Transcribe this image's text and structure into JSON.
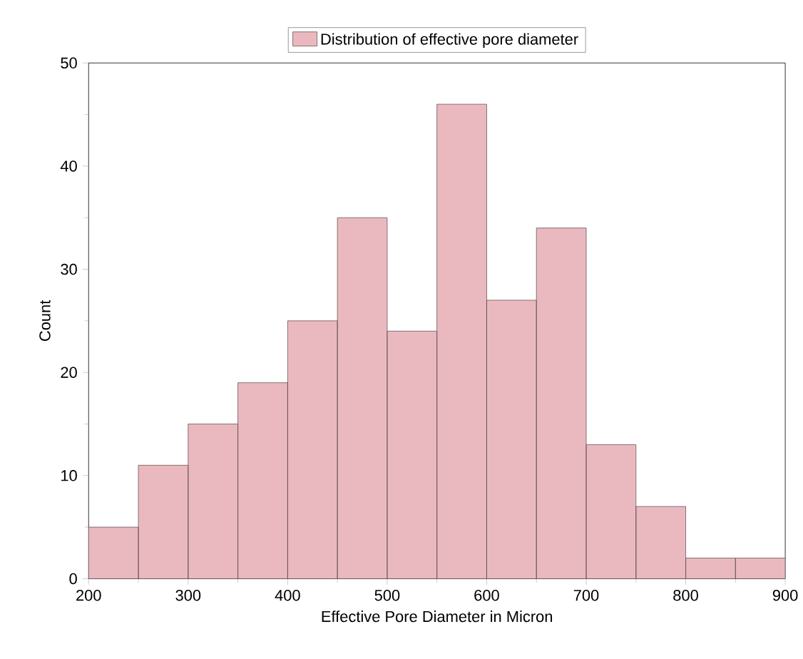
{
  "chart_data": {
    "type": "histogram",
    "xlabel": "Effective Pore Diameter in Micron",
    "ylabel": "Count",
    "bins": [
      200,
      250,
      300,
      350,
      400,
      450,
      500,
      550,
      600,
      650,
      700,
      750,
      800,
      850,
      900
    ],
    "series": [
      {
        "name": "Distribution of effective pore diameter",
        "color": "#eab9bf",
        "values": [
          5,
          11,
          15,
          19,
          25,
          35,
          24,
          46,
          27,
          34,
          13,
          7,
          2,
          2
        ]
      }
    ],
    "xlim": [
      200,
      900
    ],
    "ylim": [
      0,
      50
    ],
    "xticks": [
      200,
      300,
      400,
      500,
      600,
      700,
      800,
      900
    ],
    "yticks": [
      0,
      10,
      20,
      30,
      40,
      50
    ],
    "grid": false,
    "legend": "top"
  }
}
